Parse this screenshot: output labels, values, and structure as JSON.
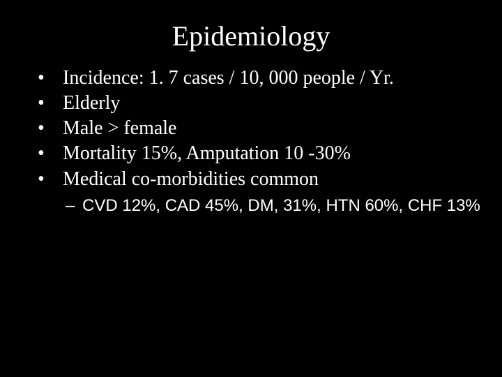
{
  "slide": {
    "background_color": "#000000",
    "text_color": "#ffffff",
    "title_font_family": "Times New Roman",
    "body_font_family": "Times New Roman",
    "sub_font_family": "Arial",
    "title_fontsize": 40,
    "bullet_fontsize": 28,
    "sub_fontsize": 24,
    "title": "Epidemiology",
    "bullets": [
      {
        "mark": "•",
        "text": "Incidence: 1. 7 cases / 10, 000 people / Yr."
      },
      {
        "mark": "•",
        "text": "Elderly"
      },
      {
        "mark": "•",
        "text": "Male > female"
      },
      {
        "mark": "•",
        "text": "Mortality 15%, Amputation 10 -30%"
      },
      {
        "mark": "•",
        "text": "Medical co-morbidities common"
      }
    ],
    "sub_bullets": [
      {
        "mark": "–",
        "text": "CVD 12%, CAD 45%, DM, 31%, HTN 60%, CHF 13%"
      }
    ]
  }
}
